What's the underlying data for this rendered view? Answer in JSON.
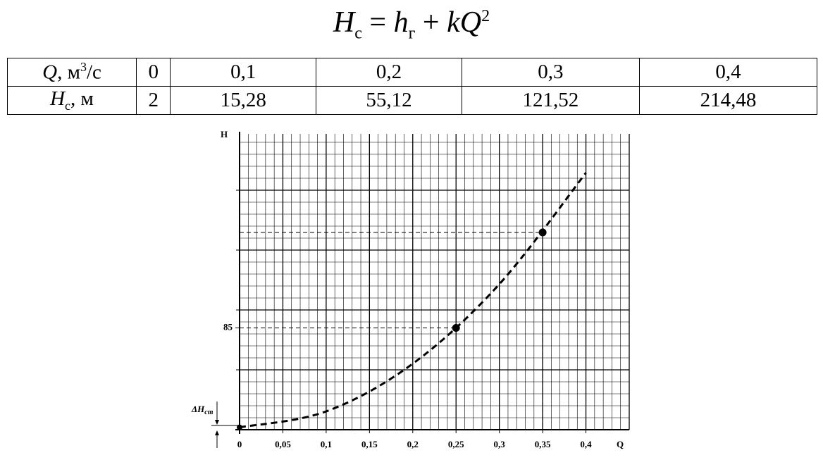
{
  "formula": {
    "lhs": "H",
    "lhs_sub": "с",
    "equals": "=",
    "term1": "h",
    "term1_sub": "г",
    "plus": "+",
    "term2": "kQ",
    "term2_sup": "2"
  },
  "table": {
    "rows": [
      {
        "label": {
          "var": "Q",
          "unit": ", м",
          "unit_sup": "3",
          "unit_rest": "/с"
        },
        "cells": [
          "0",
          "0,1",
          "0,2",
          "0,3",
          "0,4"
        ]
      },
      {
        "label": {
          "var": "H",
          "var_sub": "с",
          "unit": ", м"
        },
        "cells": [
          "2",
          "15,28",
          "55,12",
          "121,52",
          "214,48"
        ]
      }
    ]
  },
  "chart_data": {
    "type": "line",
    "x_label": "Q",
    "y_label": "H",
    "x": [
      0,
      0.1,
      0.2,
      0.3,
      0.4
    ],
    "values": [
      2,
      15.28,
      55.12,
      121.52,
      214.48
    ],
    "color": "#000000",
    "points": {
      "x": [
        0.25,
        0.35
      ],
      "values": [
        85,
        164.7
      ]
    },
    "xlim": [
      0,
      0.45
    ],
    "ylim": [
      0,
      247
    ],
    "xticks": [
      0,
      {
        "value": 0.05,
        "label": "0,05"
      },
      {
        "value": 0.1,
        "label": "0,1"
      },
      {
        "value": 0.15,
        "label": "0,15"
      },
      {
        "value": 0.2,
        "label": "0,2"
      },
      {
        "value": 0.25,
        "label": "0,25"
      },
      {
        "value": 0.3,
        "label": "0,3"
      },
      {
        "value": 0.35,
        "label": "0,35"
      },
      {
        "value": 0.4,
        "label": "0,4"
      }
    ],
    "yticks": [
      85
    ],
    "annotation": {
      "text": "ΔH",
      "sub": "ст"
    }
  }
}
